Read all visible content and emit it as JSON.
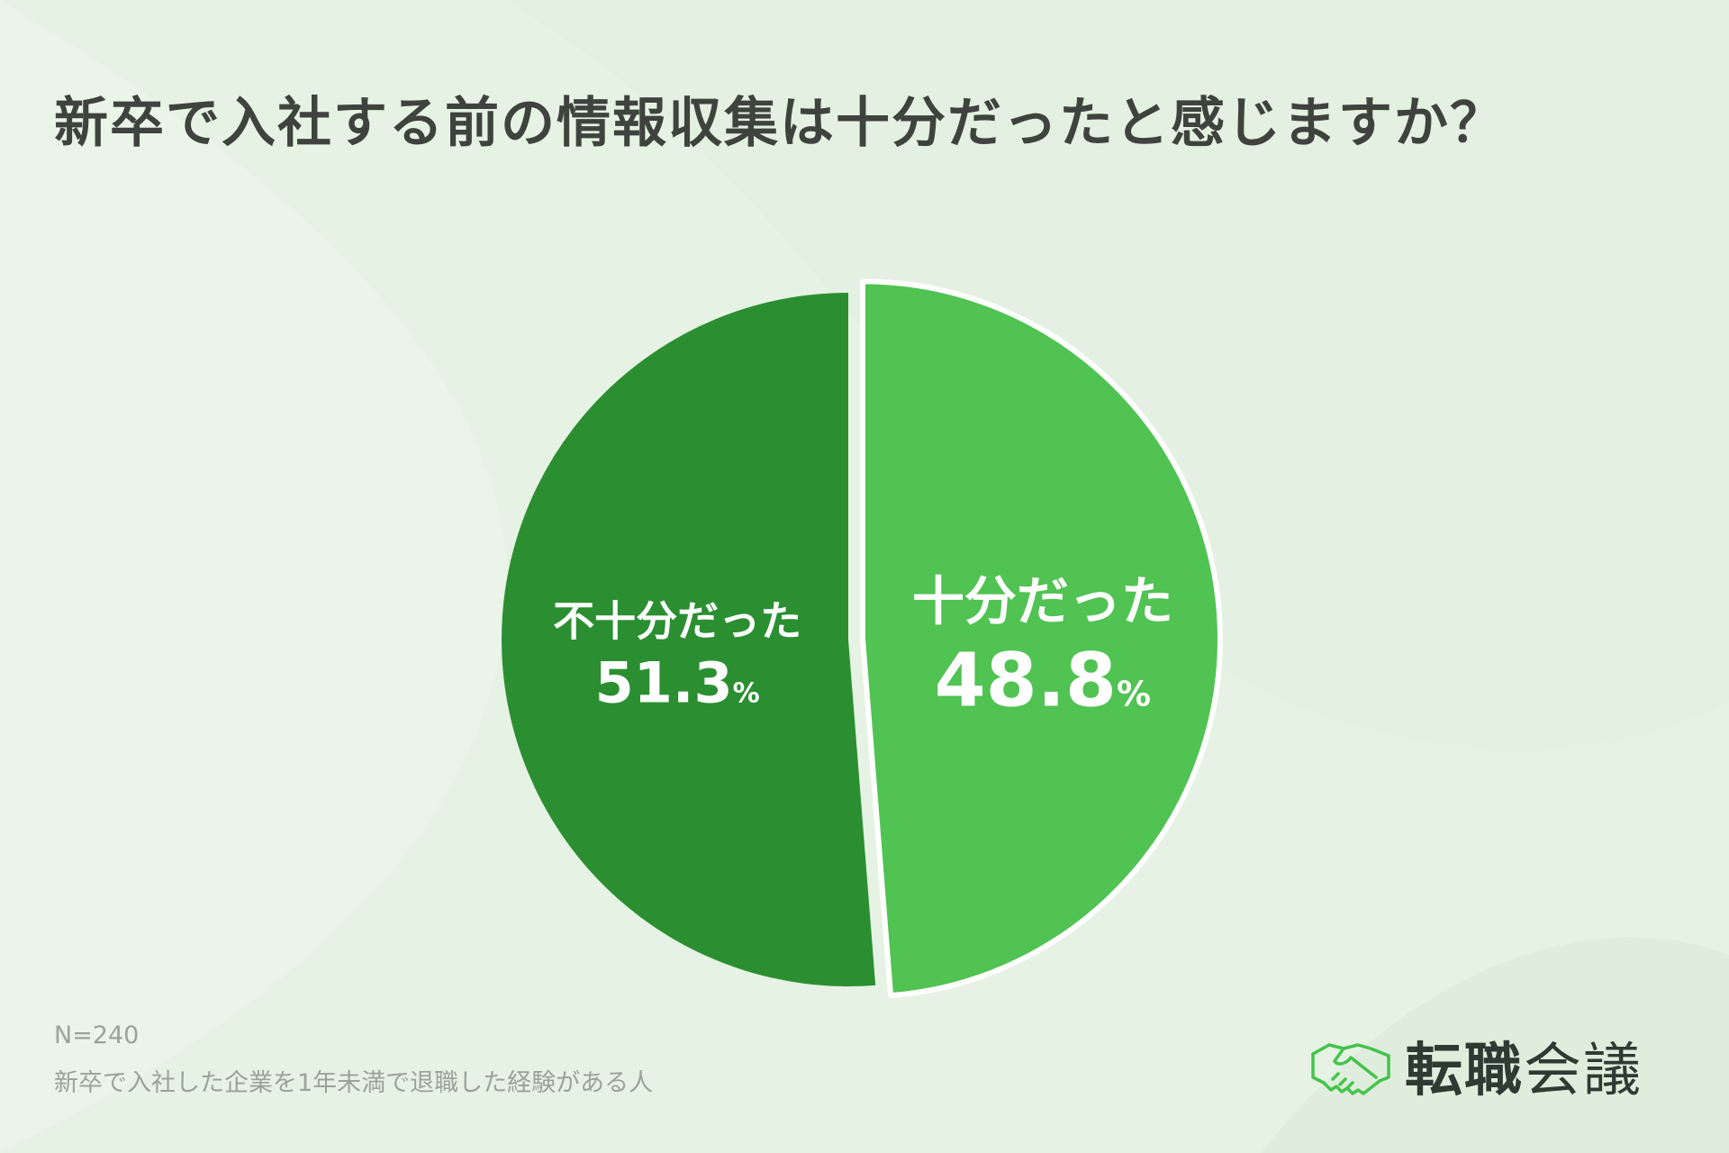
{
  "title": "新卒で入社する前の情報収集は十分だったと感じますか？",
  "colors": {
    "insufficient": "#2b8f31",
    "sufficient": "#50c352",
    "title": "#3e443d",
    "brand_icon": "#45c34c"
  },
  "chart_data": {
    "type": "pie",
    "title": "新卒で入社する前の情報収集は十分だったと感じますか？",
    "slices": [
      {
        "label": "十分だった",
        "value": 48.8,
        "value_label": "48.8",
        "unit": "%",
        "exploded": true
      },
      {
        "label": "不十分だった",
        "value": 51.3,
        "value_label": "51.3",
        "unit": "%",
        "exploded": false
      }
    ]
  },
  "notes": {
    "n": "N=240",
    "respondents": "新卒で入社した企業を1年未満で退職した経験がある人"
  },
  "brand": {
    "icon": "handshake-icon",
    "name_bold": "転職",
    "name_light": "会議"
  }
}
